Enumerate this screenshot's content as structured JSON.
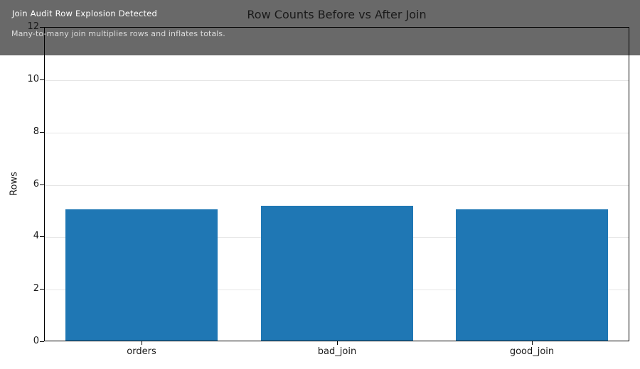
{
  "banner": {
    "heading": "Join Audit Row Explosion Detected",
    "subtext": "Many-to-many join multiplies rows and inflates totals."
  },
  "chart_data": {
    "type": "bar",
    "title": "Row Counts Before vs After Join",
    "categories": [
      "orders",
      "bad_join",
      "good_join"
    ],
    "values": [
      5.0,
      5.15,
      5.0
    ],
    "xlabel": "",
    "ylabel": "Rows",
    "ylim": [
      0,
      12
    ],
    "yticks": [
      0,
      2,
      4,
      6,
      8,
      10,
      12
    ],
    "grid": "horizontal-gridlines-on",
    "legend": "none"
  },
  "colors": {
    "bar": "#1f77b4",
    "banner_bg": "#696969",
    "banner_heading": "#ffffff",
    "banner_subtext": "#dcdcdc",
    "gridline": "#e6e6e6",
    "axis": "#000000",
    "background": "#ffffff"
  }
}
